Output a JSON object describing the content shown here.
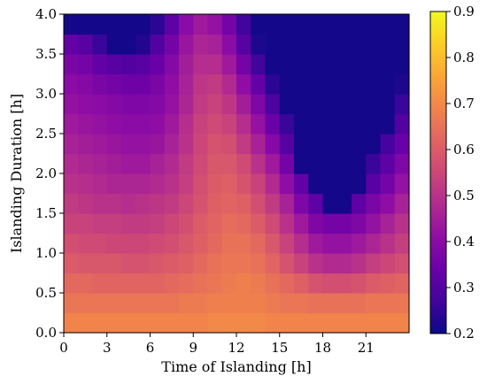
{
  "chart_data": {
    "type": "heatmap",
    "xlabel": "Time of Islanding [h]",
    "ylabel": "Islanding Duration [h]",
    "x_range": [
      0,
      24
    ],
    "y_range": [
      0,
      4
    ],
    "x_ticks": [
      "0",
      "3",
      "6",
      "9",
      "12",
      "15",
      "18",
      "21"
    ],
    "y_ticks": [
      "0.0",
      "0.5",
      "1.0",
      "1.5",
      "2.0",
      "2.5",
      "3.0",
      "3.5",
      "4.0"
    ],
    "colorbar": {
      "colormap": "plasma",
      "range": [
        0.2,
        0.9
      ],
      "ticks": [
        "0.2",
        "0.3",
        "0.4",
        "0.5",
        "0.6",
        "0.7",
        "0.8",
        "0.9"
      ]
    },
    "x_bins": 24,
    "y_bins": 16,
    "y_bin_width": 0.25,
    "row_bottoms": [
      0.0,
      0.25,
      0.5,
      0.75,
      1.0,
      1.25,
      1.5,
      1.75,
      2.0,
      2.25,
      2.5,
      2.75,
      3.0,
      3.25,
      3.5,
      3.75
    ],
    "values": [
      [
        0.69,
        0.69,
        0.69,
        0.69,
        0.69,
        0.69,
        0.69,
        0.69,
        0.69,
        0.69,
        0.7,
        0.7,
        0.7,
        0.7,
        0.69,
        0.69,
        0.69,
        0.69,
        0.69,
        0.69,
        0.69,
        0.69,
        0.69,
        0.69
      ],
      [
        0.66,
        0.66,
        0.66,
        0.66,
        0.66,
        0.66,
        0.66,
        0.66,
        0.67,
        0.67,
        0.68,
        0.68,
        0.68,
        0.68,
        0.67,
        0.66,
        0.66,
        0.65,
        0.65,
        0.65,
        0.65,
        0.66,
        0.66,
        0.66
      ],
      [
        0.63,
        0.63,
        0.62,
        0.62,
        0.62,
        0.62,
        0.62,
        0.63,
        0.64,
        0.65,
        0.66,
        0.67,
        0.68,
        0.67,
        0.65,
        0.63,
        0.61,
        0.58,
        0.57,
        0.57,
        0.58,
        0.6,
        0.61,
        0.62
      ],
      [
        0.6,
        0.59,
        0.59,
        0.59,
        0.58,
        0.58,
        0.59,
        0.6,
        0.61,
        0.63,
        0.65,
        0.66,
        0.66,
        0.65,
        0.62,
        0.58,
        0.54,
        0.5,
        0.48,
        0.48,
        0.5,
        0.53,
        0.55,
        0.57
      ],
      [
        0.57,
        0.56,
        0.56,
        0.55,
        0.55,
        0.55,
        0.56,
        0.57,
        0.59,
        0.61,
        0.63,
        0.65,
        0.65,
        0.63,
        0.59,
        0.54,
        0.49,
        0.44,
        0.42,
        0.42,
        0.44,
        0.47,
        0.5,
        0.53
      ],
      [
        0.54,
        0.54,
        0.53,
        0.53,
        0.52,
        0.52,
        0.53,
        0.55,
        0.57,
        0.6,
        0.62,
        0.64,
        0.63,
        0.6,
        0.56,
        0.5,
        0.44,
        0.38,
        0.36,
        0.36,
        0.38,
        0.42,
        0.46,
        0.5
      ],
      [
        0.52,
        0.51,
        0.5,
        0.5,
        0.49,
        0.5,
        0.51,
        0.52,
        0.55,
        0.58,
        0.61,
        0.62,
        0.61,
        0.57,
        0.52,
        0.46,
        0.38,
        0.32,
        0.21,
        0.21,
        0.32,
        0.37,
        0.41,
        0.46
      ],
      [
        0.5,
        0.49,
        0.48,
        0.47,
        0.47,
        0.47,
        0.48,
        0.5,
        0.53,
        0.57,
        0.6,
        0.61,
        0.58,
        0.54,
        0.48,
        0.41,
        0.33,
        0.21,
        0.21,
        0.21,
        0.21,
        0.31,
        0.36,
        0.42
      ],
      [
        0.48,
        0.47,
        0.46,
        0.45,
        0.44,
        0.44,
        0.46,
        0.48,
        0.52,
        0.56,
        0.59,
        0.59,
        0.56,
        0.5,
        0.44,
        0.36,
        0.21,
        0.21,
        0.21,
        0.21,
        0.21,
        0.26,
        0.32,
        0.38
      ],
      [
        0.46,
        0.45,
        0.44,
        0.43,
        0.42,
        0.42,
        0.43,
        0.46,
        0.5,
        0.55,
        0.58,
        0.57,
        0.52,
        0.46,
        0.39,
        0.31,
        0.21,
        0.21,
        0.21,
        0.21,
        0.21,
        0.21,
        0.28,
        0.34
      ],
      [
        0.44,
        0.43,
        0.42,
        0.41,
        0.4,
        0.4,
        0.41,
        0.44,
        0.49,
        0.54,
        0.56,
        0.54,
        0.49,
        0.42,
        0.34,
        0.26,
        0.21,
        0.21,
        0.21,
        0.21,
        0.21,
        0.21,
        0.21,
        0.3
      ],
      [
        0.42,
        0.41,
        0.4,
        0.39,
        0.38,
        0.38,
        0.39,
        0.42,
        0.47,
        0.52,
        0.54,
        0.51,
        0.45,
        0.38,
        0.29,
        0.21,
        0.21,
        0.21,
        0.21,
        0.21,
        0.21,
        0.21,
        0.21,
        0.26
      ],
      [
        0.4,
        0.39,
        0.37,
        0.36,
        0.35,
        0.35,
        0.37,
        0.41,
        0.46,
        0.51,
        0.52,
        0.48,
        0.41,
        0.33,
        0.24,
        0.21,
        0.21,
        0.21,
        0.21,
        0.21,
        0.21,
        0.21,
        0.21,
        0.22
      ],
      [
        0.37,
        0.36,
        0.33,
        0.31,
        0.3,
        0.31,
        0.34,
        0.39,
        0.45,
        0.49,
        0.49,
        0.44,
        0.36,
        0.27,
        0.21,
        0.21,
        0.21,
        0.21,
        0.21,
        0.21,
        0.21,
        0.21,
        0.21,
        0.21
      ],
      [
        0.33,
        0.31,
        0.26,
        0.21,
        0.21,
        0.23,
        0.3,
        0.36,
        0.43,
        0.47,
        0.46,
        0.4,
        0.31,
        0.22,
        0.21,
        0.21,
        0.21,
        0.21,
        0.21,
        0.21,
        0.21,
        0.21,
        0.21,
        0.21
      ],
      [
        0.21,
        0.21,
        0.21,
        0.21,
        0.21,
        0.21,
        0.24,
        0.32,
        0.4,
        0.44,
        0.42,
        0.36,
        0.27,
        0.21,
        0.21,
        0.21,
        0.21,
        0.21,
        0.21,
        0.21,
        0.21,
        0.21,
        0.21,
        0.21
      ]
    ]
  }
}
